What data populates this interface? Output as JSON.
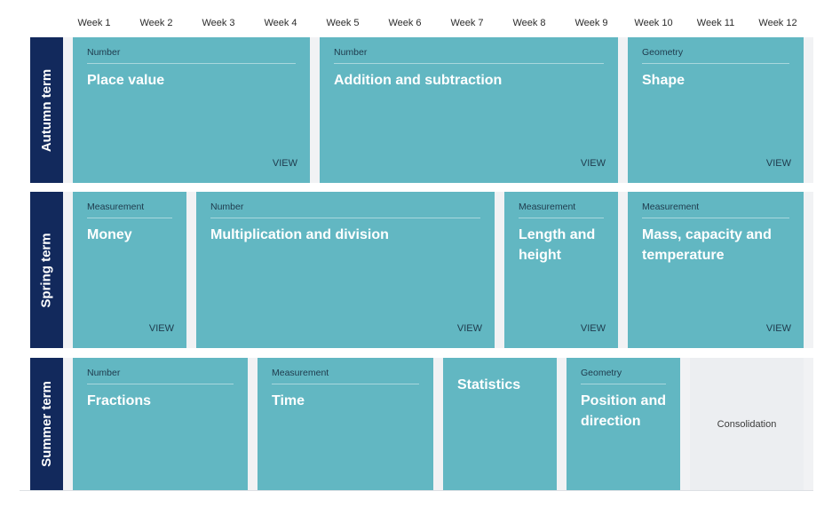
{
  "weeks": [
    "Week 1",
    "Week 2",
    "Week 3",
    "Week 4",
    "Week 5",
    "Week 6",
    "Week 7",
    "Week 8",
    "Week 9",
    "Week 10",
    "Week 11",
    "Week 12"
  ],
  "terms": {
    "autumn": "Autumn term",
    "spring": "Spring term",
    "summer": "Summer term"
  },
  "view_label": "VIEW",
  "blocks": {
    "place_value": {
      "category": "Number",
      "title": "Place value"
    },
    "add_sub": {
      "category": "Number",
      "title": "Addition and subtraction"
    },
    "shape": {
      "category": "Geometry",
      "title": "Shape"
    },
    "money": {
      "category": "Measurement",
      "title": "Money"
    },
    "mult_div": {
      "category": "Number",
      "title": "Multiplication and division"
    },
    "length_height": {
      "category": "Measurement",
      "title": "Length and height"
    },
    "mass_capacity": {
      "category": "Measurement",
      "title": "Mass, capacity and temperature"
    },
    "fractions": {
      "category": "Number",
      "title": "Fractions"
    },
    "time": {
      "category": "Measurement",
      "title": "Time"
    },
    "statistics": {
      "title": "Statistics"
    },
    "position": {
      "category": "Geometry",
      "title": "Position and direction"
    },
    "consolidation": {
      "title": "Consolidation"
    }
  }
}
